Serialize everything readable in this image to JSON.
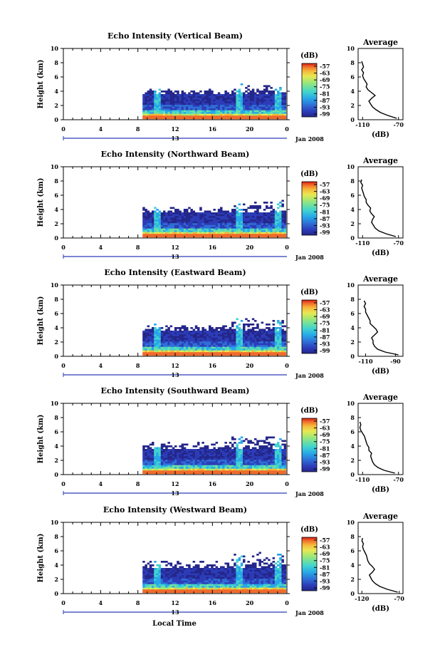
{
  "figure": {
    "y_axis_label": "Height (km)",
    "colorbar_unit": "(dB)",
    "colorbar_ticks": [
      "-57",
      "-63",
      "-69",
      "-75",
      "-81",
      "-87",
      "-93",
      "-99"
    ],
    "colorbar_colors": [
      "#24268a",
      "#2c3cb8",
      "#2f6fd6",
      "#27a6e8",
      "#3fd2d0",
      "#6ee0a0",
      "#a8e870",
      "#e8e852",
      "#f7b63a",
      "#f06a2a",
      "#d41c14"
    ],
    "average_title": "Average",
    "average_xlabel": "(dB)",
    "date_label": "Jan 2008",
    "x_ticks": [
      "0",
      "4",
      "8",
      "12",
      "16",
      "20",
      "0"
    ],
    "day_label": "13",
    "x_axis_label": "Local Time",
    "y_ticks": [
      "0",
      "2",
      "4",
      "6",
      "8",
      "10"
    ]
  },
  "chart_data": [
    {
      "type": "heatmap",
      "title": "Echo Intensity (Vertical Beam)",
      "ylabel": "Height (km)",
      "xlabel": "",
      "x_range_hours": [
        0,
        24
      ],
      "ylim": [
        0,
        10
      ],
      "colorbar_range_db": [
        -99,
        -57
      ],
      "data_start_hour": 8.5,
      "profile": {
        "title": "Average",
        "xlabel": "(dB)",
        "x_ticks": [
          "-110",
          "-70"
        ],
        "xlim": [
          -115,
          -65
        ],
        "height_km": [
          0.2,
          0.6,
          1.0,
          1.4,
          1.8,
          2.2,
          2.6,
          3.0,
          3.4,
          3.8,
          4.2,
          4.6,
          5.0,
          5.4,
          5.8,
          6.2,
          6.6,
          7.0,
          7.4,
          7.8,
          8.2
        ],
        "values_db": [
          -72,
          -82,
          -90,
          -95,
          -99,
          -101,
          -103,
          -100,
          -96,
          -100,
          -104,
          -106,
          -105,
          -107,
          -109,
          -110,
          -109,
          -111,
          -109,
          -110,
          -111
        ]
      }
    },
    {
      "type": "heatmap",
      "title": "Echo Intensity (Northward Beam)",
      "ylabel": "Height (km)",
      "xlabel": "",
      "x_range_hours": [
        0,
        24
      ],
      "ylim": [
        0,
        10
      ],
      "colorbar_range_db": [
        -99,
        -57
      ],
      "data_start_hour": 8.5,
      "profile": {
        "title": "Average",
        "xlabel": "(dB)",
        "x_ticks": [
          "-110",
          "-70"
        ],
        "xlim": [
          -115,
          -65
        ],
        "height_km": [
          0.2,
          0.6,
          1.0,
          1.4,
          1.8,
          2.2,
          2.6,
          3.0,
          3.4,
          3.8,
          4.2,
          4.6,
          5.0,
          5.4,
          5.8,
          6.2,
          6.6,
          7.0,
          7.4,
          7.8,
          8.2
        ],
        "values_db": [
          -73,
          -84,
          -92,
          -96,
          -98,
          -100,
          -99,
          -97,
          -100,
          -102,
          -101,
          -104,
          -106,
          -106,
          -108,
          -109,
          -110,
          -111,
          -110,
          -112,
          -111
        ]
      }
    },
    {
      "type": "heatmap",
      "title": "Echo Intensity (Eastward Beam)",
      "ylabel": "Height (km)",
      "xlabel": "",
      "x_range_hours": [
        0,
        24
      ],
      "ylim": [
        0,
        10
      ],
      "colorbar_range_db": [
        -99,
        -57
      ],
      "data_start_hour": 8.5,
      "profile": {
        "title": "Average",
        "xlabel": "(dB)",
        "x_ticks": [
          "-110",
          "-90"
        ],
        "xlim": [
          -115,
          -85
        ],
        "height_km": [
          0.2,
          0.6,
          1.0,
          1.4,
          1.8,
          2.2,
          2.6,
          3.0,
          3.4,
          3.8,
          4.2,
          4.6,
          5.0,
          5.4,
          5.8,
          6.2,
          6.6,
          7.0,
          7.4,
          7.8
        ],
        "values_db": [
          -88,
          -97,
          -102,
          -104,
          -105,
          -105,
          -106,
          -104,
          -102,
          -103,
          -105,
          -107,
          -107,
          -108,
          -109,
          -110,
          -110,
          -111,
          -110,
          -111
        ]
      }
    },
    {
      "type": "heatmap",
      "title": "Echo Intensity (Southward Beam)",
      "ylabel": "Height (km)",
      "xlabel": "",
      "x_range_hours": [
        0,
        24
      ],
      "ylim": [
        0,
        10
      ],
      "colorbar_range_db": [
        -99,
        -57
      ],
      "data_start_hour": 8.5,
      "profile": {
        "title": "Average",
        "xlabel": "(dB)",
        "x_ticks": [
          "-110",
          "-70"
        ],
        "xlim": [
          -115,
          -65
        ],
        "height_km": [
          0.2,
          0.6,
          1.0,
          1.4,
          1.8,
          2.2,
          2.6,
          3.0,
          3.4,
          3.8,
          4.2,
          4.6,
          5.0,
          5.4,
          5.8,
          6.2,
          6.6,
          7.0,
          7.4
        ],
        "values_db": [
          -74,
          -86,
          -93,
          -97,
          -99,
          -100,
          -101,
          -100,
          -103,
          -103,
          -105,
          -106,
          -107,
          -108,
          -110,
          -112,
          -113,
          -112,
          -113
        ]
      }
    },
    {
      "type": "heatmap",
      "title": "Echo Intensity (Westward Beam)",
      "ylabel": "Height (km)",
      "xlabel": "Local Time",
      "x_range_hours": [
        0,
        24
      ],
      "ylim": [
        0,
        10
      ],
      "colorbar_range_db": [
        -99,
        -57
      ],
      "data_start_hour": 8.5,
      "profile": {
        "title": "Average",
        "xlabel": "(dB)",
        "x_ticks": [
          "-120",
          "-70"
        ],
        "xlim": [
          -125,
          -65
        ],
        "height_km": [
          0.2,
          0.6,
          1.0,
          1.4,
          1.8,
          2.2,
          2.6,
          3.0,
          3.4,
          3.8,
          4.2,
          4.6,
          5.0,
          5.4,
          5.8,
          6.2,
          6.6,
          7.0,
          7.4,
          7.8
        ],
        "values_db": [
          -72,
          -86,
          -96,
          -102,
          -106,
          -108,
          -110,
          -106,
          -103,
          -106,
          -110,
          -112,
          -113,
          -114,
          -116,
          -118,
          -119,
          -118,
          -120,
          -119
        ]
      }
    }
  ]
}
